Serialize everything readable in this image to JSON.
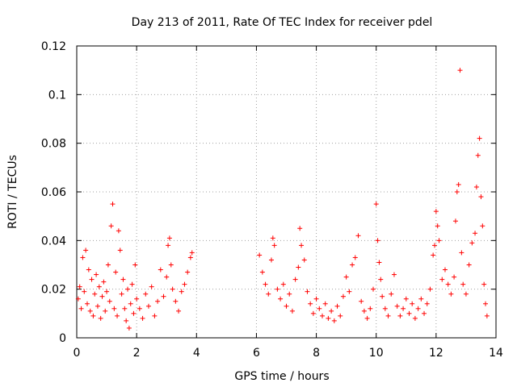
{
  "chart_data": {
    "type": "scatter",
    "title": "Day 213 of 2011, Rate Of TEC Index for receiver pdel",
    "xlabel": "GPS time / hours",
    "ylabel": "ROTI / TECUs",
    "xlim": [
      0,
      14
    ],
    "ylim": [
      0,
      0.12
    ],
    "xticks": [
      0,
      2,
      4,
      6,
      8,
      10,
      12,
      14
    ],
    "xtick_labels": [
      "0",
      "2",
      "4",
      "6",
      "8",
      "10",
      "12",
      "14"
    ],
    "yticks": [
      0,
      0.02,
      0.04,
      0.06,
      0.08,
      0.1,
      0.12
    ],
    "ytick_labels": [
      "0",
      "0.02",
      "0.04",
      "0.06",
      "0.08",
      "0.1",
      "0.12"
    ],
    "grid": true,
    "marker": "+",
    "color": "#ff0000",
    "series": [
      {
        "name": "ROTI",
        "points": [
          [
            0.05,
            0.016
          ],
          [
            0.1,
            0.021
          ],
          [
            0.15,
            0.012
          ],
          [
            0.2,
            0.033
          ],
          [
            0.25,
            0.019
          ],
          [
            0.3,
            0.036
          ],
          [
            0.35,
            0.014
          ],
          [
            0.4,
            0.028
          ],
          [
            0.45,
            0.011
          ],
          [
            0.5,
            0.024
          ],
          [
            0.55,
            0.009
          ],
          [
            0.6,
            0.018
          ],
          [
            0.65,
            0.026
          ],
          [
            0.7,
            0.013
          ],
          [
            0.75,
            0.021
          ],
          [
            0.8,
            0.008
          ],
          [
            0.85,
            0.017
          ],
          [
            0.9,
            0.023
          ],
          [
            0.95,
            0.011
          ],
          [
            1.0,
            0.019
          ],
          [
            1.05,
            0.03
          ],
          [
            1.1,
            0.015
          ],
          [
            1.15,
            0.046
          ],
          [
            1.2,
            0.055
          ],
          [
            1.25,
            0.012
          ],
          [
            1.3,
            0.027
          ],
          [
            1.35,
            0.009
          ],
          [
            1.4,
            0.044
          ],
          [
            1.45,
            0.036
          ],
          [
            1.5,
            0.018
          ],
          [
            1.55,
            0.024
          ],
          [
            1.6,
            0.012
          ],
          [
            1.65,
            0.007
          ],
          [
            1.7,
            0.02
          ],
          [
            1.75,
            0.004
          ],
          [
            1.8,
            0.014
          ],
          [
            1.85,
            0.022
          ],
          [
            1.9,
            0.01
          ],
          [
            1.95,
            0.03
          ],
          [
            2.0,
            0.016
          ],
          [
            2.1,
            0.012
          ],
          [
            2.2,
            0.008
          ],
          [
            2.3,
            0.018
          ],
          [
            2.4,
            0.013
          ],
          [
            2.5,
            0.021
          ],
          [
            2.6,
            0.009
          ],
          [
            2.7,
            0.015
          ],
          [
            2.8,
            0.028
          ],
          [
            2.9,
            0.017
          ],
          [
            3.0,
            0.025
          ],
          [
            3.05,
            0.038
          ],
          [
            3.1,
            0.041
          ],
          [
            3.15,
            0.03
          ],
          [
            3.2,
            0.02
          ],
          [
            3.3,
            0.015
          ],
          [
            3.4,
            0.011
          ],
          [
            3.5,
            0.019
          ],
          [
            3.6,
            0.022
          ],
          [
            3.7,
            0.027
          ],
          [
            3.8,
            0.033
          ],
          [
            3.85,
            0.035
          ],
          [
            6.1,
            0.034
          ],
          [
            6.2,
            0.027
          ],
          [
            6.3,
            0.022
          ],
          [
            6.4,
            0.018
          ],
          [
            6.5,
            0.032
          ],
          [
            6.55,
            0.041
          ],
          [
            6.6,
            0.038
          ],
          [
            6.7,
            0.02
          ],
          [
            6.8,
            0.016
          ],
          [
            6.9,
            0.022
          ],
          [
            7.0,
            0.013
          ],
          [
            7.1,
            0.018
          ],
          [
            7.2,
            0.011
          ],
          [
            7.3,
            0.024
          ],
          [
            7.4,
            0.029
          ],
          [
            7.45,
            0.045
          ],
          [
            7.5,
            0.038
          ],
          [
            7.6,
            0.032
          ],
          [
            7.7,
            0.019
          ],
          [
            7.8,
            0.014
          ],
          [
            7.9,
            0.01
          ],
          [
            8.0,
            0.016
          ],
          [
            8.1,
            0.012
          ],
          [
            8.2,
            0.009
          ],
          [
            8.3,
            0.014
          ],
          [
            8.4,
            0.008
          ],
          [
            8.5,
            0.011
          ],
          [
            8.6,
            0.007
          ],
          [
            8.7,
            0.013
          ],
          [
            8.8,
            0.009
          ],
          [
            8.9,
            0.017
          ],
          [
            9.0,
            0.025
          ],
          [
            9.1,
            0.019
          ],
          [
            9.2,
            0.03
          ],
          [
            9.3,
            0.033
          ],
          [
            9.4,
            0.042
          ],
          [
            9.5,
            0.015
          ],
          [
            9.6,
            0.011
          ],
          [
            9.7,
            0.008
          ],
          [
            9.8,
            0.012
          ],
          [
            9.9,
            0.02
          ],
          [
            10.0,
            0.055
          ],
          [
            10.05,
            0.04
          ],
          [
            10.1,
            0.031
          ],
          [
            10.15,
            0.024
          ],
          [
            10.2,
            0.017
          ],
          [
            10.3,
            0.012
          ],
          [
            10.4,
            0.009
          ],
          [
            10.5,
            0.018
          ],
          [
            10.6,
            0.026
          ],
          [
            10.7,
            0.013
          ],
          [
            10.8,
            0.009
          ],
          [
            10.9,
            0.012
          ],
          [
            11.0,
            0.016
          ],
          [
            11.1,
            0.01
          ],
          [
            11.2,
            0.014
          ],
          [
            11.3,
            0.008
          ],
          [
            11.4,
            0.012
          ],
          [
            11.5,
            0.016
          ],
          [
            11.6,
            0.01
          ],
          [
            11.7,
            0.014
          ],
          [
            11.8,
            0.02
          ],
          [
            11.9,
            0.034
          ],
          [
            11.95,
            0.038
          ],
          [
            12.0,
            0.052
          ],
          [
            12.05,
            0.046
          ],
          [
            12.1,
            0.04
          ],
          [
            12.2,
            0.024
          ],
          [
            12.3,
            0.028
          ],
          [
            12.4,
            0.022
          ],
          [
            12.5,
            0.018
          ],
          [
            12.6,
            0.025
          ],
          [
            12.65,
            0.048
          ],
          [
            12.7,
            0.06
          ],
          [
            12.75,
            0.063
          ],
          [
            12.8,
            0.11
          ],
          [
            12.85,
            0.035
          ],
          [
            12.9,
            0.022
          ],
          [
            13.0,
            0.018
          ],
          [
            13.1,
            0.03
          ],
          [
            13.2,
            0.039
          ],
          [
            13.3,
            0.043
          ],
          [
            13.35,
            0.062
          ],
          [
            13.4,
            0.075
          ],
          [
            13.45,
            0.082
          ],
          [
            13.5,
            0.058
          ],
          [
            13.55,
            0.046
          ],
          [
            13.6,
            0.022
          ],
          [
            13.65,
            0.014
          ],
          [
            13.7,
            0.009
          ]
        ]
      }
    ]
  }
}
